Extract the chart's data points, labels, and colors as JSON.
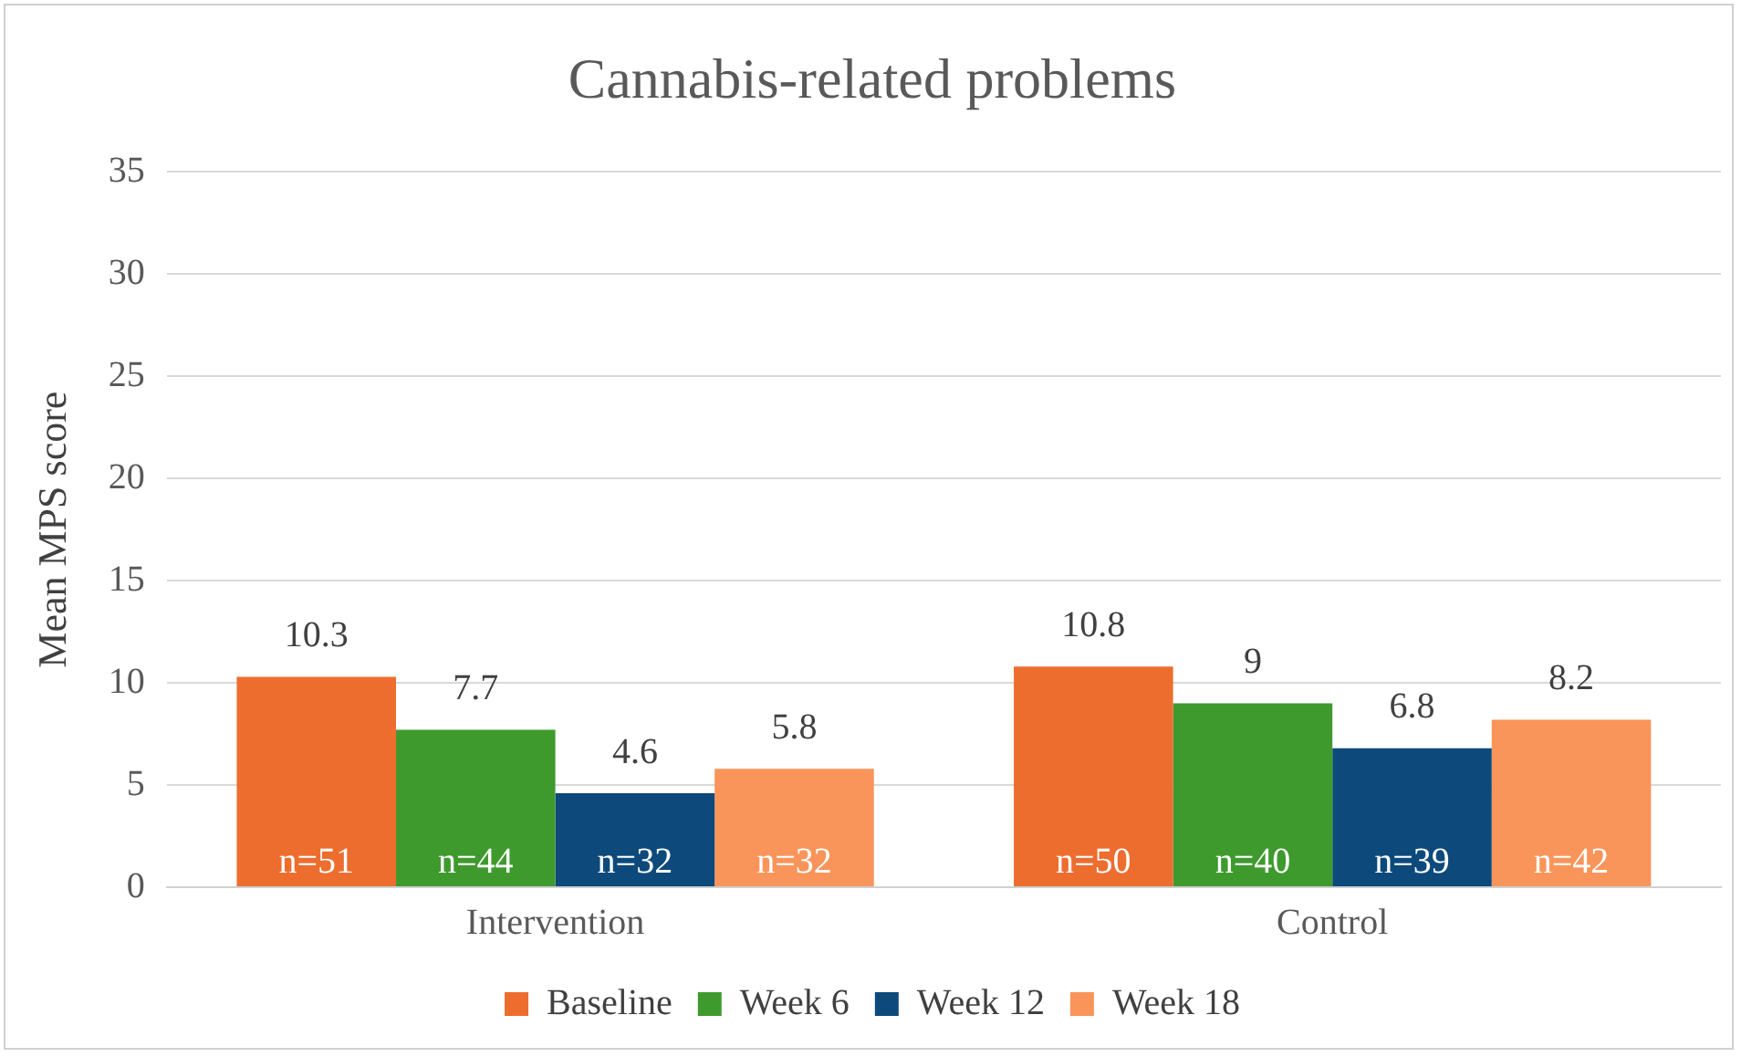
{
  "chart_data": {
    "type": "bar",
    "title": "Cannabis-related problems",
    "ylabel": "Mean MPS score",
    "categories": [
      "Intervention",
      "Control"
    ],
    "series": [
      {
        "name": "Baseline",
        "color": "#ed6d2f",
        "values": [
          10.3,
          10.8
        ]
      },
      {
        "name": "Week 6",
        "color": "#3f9a2e",
        "values": [
          7.7,
          9
        ]
      },
      {
        "name": "Week 12",
        "color": "#0d4a7b",
        "values": [
          4.6,
          6.8
        ]
      },
      {
        "name": "Week 18",
        "color": "#f9955a",
        "values": [
          5.8,
          8.2
        ]
      }
    ],
    "ylim": [
      0,
      35
    ],
    "yticks": [
      0,
      5,
      10,
      15,
      20,
      25,
      30,
      35
    ],
    "grid": "y",
    "legend": "bottom",
    "data_labels": true,
    "annotations": [
      "n=51",
      "n=44",
      "n=32",
      "n=32",
      "n=50",
      "n=40",
      "n=39",
      "n=42"
    ]
  }
}
